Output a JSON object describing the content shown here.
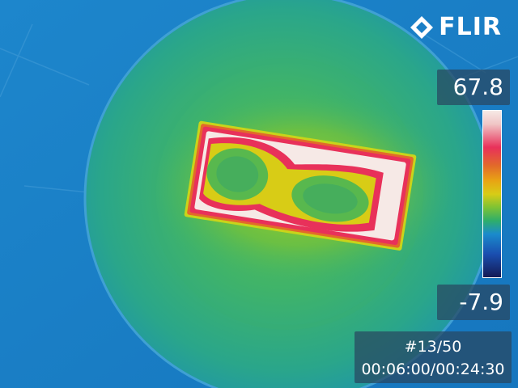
{
  "brand": {
    "logo_text": "FLIR",
    "logo_icon": "flir-diamond-icon"
  },
  "scale": {
    "max_temp": "67.8",
    "min_temp": "-7.9"
  },
  "frame": {
    "index": "#13/50",
    "timecode": "00:06:00/00:24:30"
  },
  "colors": {
    "background": "#1a7fc6",
    "dish": "#2fae8a",
    "hot": "#f6e9e6",
    "warm": "#e8315a",
    "mid": "#d8cc16",
    "cool": "#58b84e"
  }
}
